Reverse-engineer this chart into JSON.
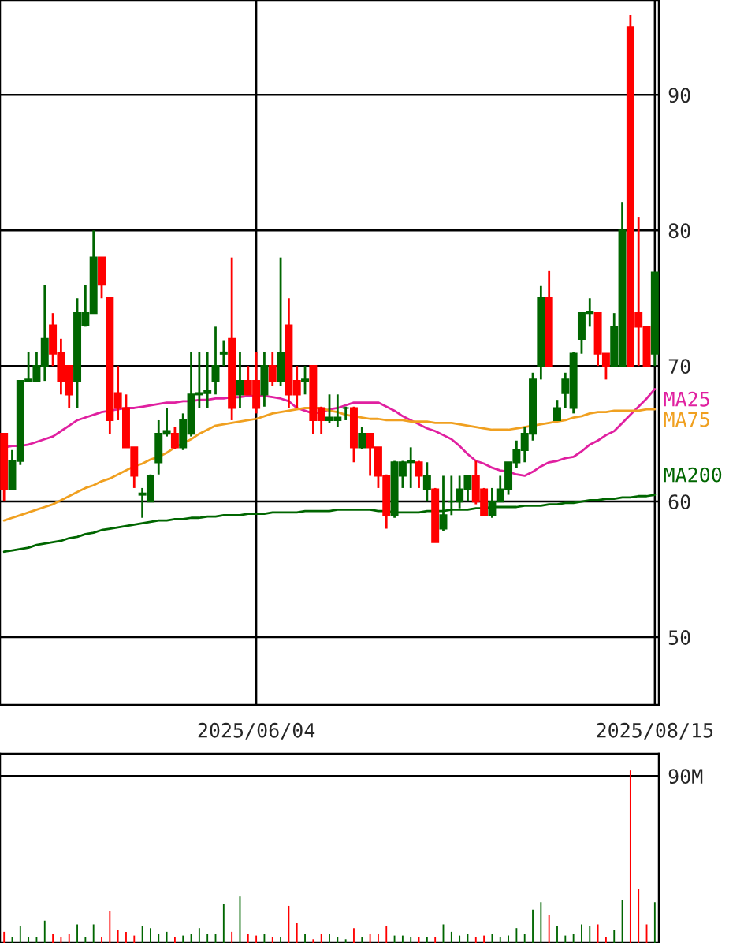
{
  "chart_data": [
    {
      "type": "candlestick",
      "categories": [
        null,
        null,
        null,
        null,
        null,
        null,
        null,
        null,
        null,
        null,
        null,
        null,
        null,
        null,
        null,
        null,
        null,
        null,
        null,
        null,
        null,
        null,
        null,
        null,
        null,
        null,
        null,
        null,
        null,
        null,
        null,
        "2025/06/04",
        null,
        null,
        null,
        null,
        null,
        null,
        null,
        null,
        null,
        null,
        null,
        null,
        null,
        null,
        null,
        null,
        null,
        null,
        null,
        null,
        null,
        null,
        null,
        null,
        null,
        null,
        null,
        null,
        null,
        null,
        null,
        null,
        null,
        null,
        null,
        null,
        null,
        null,
        null,
        null,
        null,
        null,
        null,
        null,
        null,
        null,
        null,
        null,
        "2025/08/15"
      ],
      "ohlc": [
        [
          65,
          65,
          60,
          60.9
        ],
        [
          60.9,
          63.8,
          60.9,
          63
        ],
        [
          63,
          68.9,
          62.7,
          68.9
        ],
        [
          68.9,
          71,
          68.8,
          69
        ],
        [
          68.9,
          71,
          68.9,
          70
        ],
        [
          70,
          76,
          68.9,
          72
        ],
        [
          73,
          73.9,
          70,
          70.9
        ],
        [
          71,
          72,
          67.9,
          68.9
        ],
        [
          70,
          70,
          66.9,
          67.9
        ],
        [
          68.9,
          75,
          66.9,
          73.9
        ],
        [
          73,
          76,
          72.9,
          73.9
        ],
        [
          73.9,
          80,
          73.9,
          78
        ],
        [
          78,
          78,
          75,
          76
        ],
        [
          75,
          75,
          65,
          66
        ],
        [
          68,
          70,
          66,
          66.9
        ],
        [
          66.9,
          67.9,
          64,
          64
        ],
        [
          64,
          64,
          61,
          61.9
        ],
        [
          60.5,
          61,
          58.8,
          60.6
        ],
        [
          60,
          62,
          60,
          61.9
        ],
        [
          62.9,
          66,
          62,
          65
        ],
        [
          65,
          66.9,
          64.8,
          65.2
        ],
        [
          65,
          65.5,
          63.9,
          64
        ],
        [
          64,
          66.5,
          63.8,
          66
        ],
        [
          65,
          71,
          64.8,
          67.9
        ],
        [
          67.9,
          71,
          66.9,
          68
        ],
        [
          68,
          71,
          66.9,
          68.2
        ],
        [
          68.9,
          72.9,
          67.9,
          70
        ],
        [
          70.9,
          71.9,
          70,
          71
        ],
        [
          72,
          78,
          66,
          66.9
        ],
        [
          67.9,
          71,
          66.9,
          68.9
        ],
        [
          68.9,
          70,
          67.9,
          67.9
        ],
        [
          68.9,
          71,
          66.5,
          66.9
        ],
        [
          67.9,
          71,
          67,
          70
        ],
        [
          70,
          71,
          68.5,
          68.9
        ],
        [
          68.9,
          78,
          68.5,
          71
        ],
        [
          73,
          75,
          66.9,
          67.9
        ],
        [
          68.9,
          70,
          66.9,
          67.9
        ],
        [
          68.9,
          70,
          67.9,
          69
        ],
        [
          70,
          70,
          65,
          66
        ],
        [
          66.9,
          67,
          65,
          66
        ],
        [
          66,
          67.9,
          65.8,
          66.2
        ],
        [
          66,
          67.9,
          65.5,
          66.2
        ],
        [
          66.9,
          67,
          66,
          66.9
        ],
        [
          66.9,
          67,
          62.9,
          64
        ],
        [
          64,
          65.5,
          63.9,
          65
        ],
        [
          65,
          65,
          61.9,
          64
        ],
        [
          64,
          64,
          61,
          61.9
        ],
        [
          61.9,
          62,
          58,
          59
        ],
        [
          59,
          63,
          58.8,
          62.9
        ],
        [
          61.9,
          63,
          61,
          62.9
        ],
        [
          62.9,
          64,
          61,
          63
        ],
        [
          62.9,
          63,
          61,
          61.9
        ],
        [
          60.9,
          62.9,
          60,
          61.9
        ],
        [
          60.9,
          61,
          57,
          57
        ],
        [
          58,
          61.9,
          57.8,
          59
        ],
        [
          60,
          61.9,
          59,
          60
        ],
        [
          60,
          61.9,
          59.5,
          60.9
        ],
        [
          60.9,
          61.9,
          60,
          61.9
        ],
        [
          61.9,
          63,
          59.8,
          60
        ],
        [
          60.9,
          61,
          59,
          59
        ],
        [
          59,
          61,
          58.8,
          60
        ],
        [
          60,
          61.9,
          60,
          60.9
        ],
        [
          60.9,
          62.9,
          60.5,
          62.9
        ],
        [
          62.9,
          64.5,
          62.5,
          63.8
        ],
        [
          63.8,
          65.5,
          62.9,
          65
        ],
        [
          65,
          69.5,
          64.5,
          69
        ],
        [
          70,
          75.9,
          69,
          75
        ],
        [
          75,
          77,
          70,
          70
        ],
        [
          66,
          67.5,
          66,
          66.9
        ],
        [
          68,
          69.5,
          66.9,
          69
        ],
        [
          66.9,
          71,
          66.5,
          70.9
        ],
        [
          72,
          73.9,
          70.9,
          73.9
        ],
        [
          73.9,
          75,
          72.9,
          74
        ],
        [
          73.9,
          73.9,
          70,
          70.9
        ],
        [
          70.9,
          70.9,
          69,
          70
        ],
        [
          70,
          73.9,
          70,
          72.9
        ],
        [
          70,
          82.1,
          70,
          80
        ],
        [
          95,
          95.9,
          70,
          70
        ],
        [
          73.9,
          81,
          70,
          72.9
        ],
        [
          72.9,
          72.9,
          70,
          70
        ],
        [
          70.9,
          76.9,
          70,
          76.9
        ]
      ],
      "colors": [
        "#ff0000",
        "#006600",
        "#006600",
        "#006600",
        "#006600",
        "#006600",
        "#ff0000",
        "#ff0000",
        "#ff0000",
        "#006600",
        "#006600",
        "#006600",
        "#ff0000",
        "#ff0000",
        "#ff0000",
        "#ff0000",
        "#ff0000",
        "#006600",
        "#006600",
        "#006600",
        "#006600",
        "#ff0000",
        "#006600",
        "#006600",
        "#006600",
        "#006600",
        "#006600",
        "#006600",
        "#ff0000",
        "#006600",
        "#ff0000",
        "#ff0000",
        "#006600",
        "#ff0000",
        "#006600",
        "#ff0000",
        "#ff0000",
        "#006600",
        "#ff0000",
        "#ff0000",
        "#006600",
        "#006600",
        "#006600",
        "#ff0000",
        "#006600",
        "#ff0000",
        "#ff0000",
        "#ff0000",
        "#006600",
        "#006600",
        "#006600",
        "#ff0000",
        "#006600",
        "#ff0000",
        "#006600",
        "#006600",
        "#006600",
        "#006600",
        "#ff0000",
        "#ff0000",
        "#006600",
        "#006600",
        "#006600",
        "#006600",
        "#006600",
        "#006600",
        "#006600",
        "#ff0000",
        "#006600",
        "#006600",
        "#006600",
        "#006600",
        "#006600",
        "#ff0000",
        "#ff0000",
        "#006600",
        "#006600",
        "#ff0000",
        "#ff0000",
        "#ff0000",
        "#006600"
      ],
      "series": [
        {
          "type": "line",
          "name": "MA25",
          "color": "#e020a0",
          "values": [
            64,
            64.1,
            64.1,
            64.2,
            64.4,
            64.6,
            64.8,
            65.2,
            65.6,
            66,
            66.2,
            66.4,
            66.6,
            66.7,
            66.8,
            66.9,
            66.9,
            67,
            67.1,
            67.2,
            67.3,
            67.3,
            67.4,
            67.4,
            67.5,
            67.5,
            67.6,
            67.6,
            67.7,
            67.7,
            67.8,
            67.8,
            67.8,
            67.7,
            67.6,
            67.4,
            66.9,
            66.7,
            66.5,
            66.6,
            66.8,
            66.9,
            67.1,
            67.3,
            67.3,
            67.3,
            67.3,
            67,
            66.7,
            66.3,
            66,
            65.7,
            65.4,
            65.2,
            64.9,
            64.6,
            64.1,
            63.5,
            63,
            62.8,
            62.5,
            62.3,
            62.2,
            62,
            61.9,
            62.2,
            62.6,
            62.9,
            63,
            63.2,
            63.3,
            63.7,
            64.2,
            64.5,
            64.9,
            65.2,
            65.8,
            66.4,
            67,
            67.6,
            68.3
          ]
        },
        {
          "type": "line",
          "name": "MA75",
          "color": "#f0a020",
          "values": [
            58.6,
            58.8,
            59,
            59.2,
            59.4,
            59.6,
            59.8,
            60.1,
            60.4,
            60.7,
            61,
            61.2,
            61.5,
            61.7,
            62,
            62.3,
            62.6,
            62.8,
            63.1,
            63.3,
            63.6,
            64,
            64.3,
            64.6,
            65,
            65.3,
            65.6,
            65.7,
            65.8,
            65.9,
            66,
            66.1,
            66.3,
            66.5,
            66.6,
            66.7,
            66.8,
            66.9,
            66.9,
            66.9,
            66.7,
            66.6,
            66.4,
            66.3,
            66.2,
            66.1,
            66.1,
            66,
            66,
            66,
            65.9,
            65.9,
            65.9,
            65.8,
            65.8,
            65.8,
            65.7,
            65.6,
            65.5,
            65.4,
            65.3,
            65.3,
            65.3,
            65.4,
            65.5,
            65.6,
            65.7,
            65.8,
            65.9,
            66,
            66.2,
            66.3,
            66.5,
            66.6,
            66.6,
            66.7,
            66.7,
            66.7,
            66.7,
            66.8,
            66.8
          ]
        },
        {
          "type": "line",
          "name": "MA200",
          "color": "#006600",
          "values": [
            56.3,
            56.4,
            56.5,
            56.6,
            56.8,
            56.9,
            57,
            57.1,
            57.3,
            57.4,
            57.6,
            57.7,
            57.9,
            58,
            58.1,
            58.2,
            58.3,
            58.4,
            58.5,
            58.6,
            58.6,
            58.7,
            58.7,
            58.8,
            58.8,
            58.9,
            58.9,
            59,
            59,
            59,
            59.1,
            59.1,
            59.1,
            59.2,
            59.2,
            59.2,
            59.2,
            59.3,
            59.3,
            59.3,
            59.3,
            59.4,
            59.4,
            59.4,
            59.4,
            59.4,
            59.3,
            59.3,
            59.2,
            59.2,
            59.2,
            59.2,
            59.3,
            59.3,
            59.3,
            59.4,
            59.4,
            59.4,
            59.5,
            59.5,
            59.6,
            59.6,
            59.6,
            59.6,
            59.7,
            59.7,
            59.7,
            59.8,
            59.8,
            59.9,
            59.9,
            60,
            60.1,
            60.1,
            60.2,
            60.2,
            60.3,
            60.3,
            60.4,
            60.4,
            60.5
          ]
        }
      ],
      "ylim": [
        45,
        97
      ],
      "yticks": [
        50,
        60,
        70,
        80,
        90
      ],
      "grid": true
    },
    {
      "type": "bar",
      "categories": [
        null,
        null,
        null,
        null,
        null,
        null,
        null,
        null,
        null,
        null,
        null,
        null,
        null,
        null,
        null,
        null,
        null,
        null,
        null,
        null,
        null,
        null,
        null,
        null,
        null,
        null,
        null,
        null,
        null,
        null,
        null,
        null,
        null,
        null,
        null,
        null,
        null,
        null,
        null,
        null,
        null,
        null,
        null,
        null,
        null,
        null,
        null,
        null,
        null,
        null,
        null,
        null,
        null,
        null,
        null,
        null,
        null,
        null,
        null,
        null,
        null,
        null,
        null,
        null,
        null,
        null,
        null,
        null,
        null,
        null,
        null,
        null,
        null,
        null,
        null,
        null,
        null,
        null,
        null,
        null,
        null
      ],
      "values": [
        6,
        3,
        9,
        3,
        3,
        12,
        5,
        3,
        5,
        10,
        3,
        10,
        3,
        17,
        7,
        6,
        4,
        9,
        8,
        5,
        6,
        3,
        4,
        5,
        8,
        5,
        5,
        21,
        6,
        25,
        5,
        4,
        5,
        3,
        3,
        20,
        11,
        5,
        2,
        5,
        5,
        3,
        2,
        8,
        3,
        5,
        5,
        9,
        4,
        4,
        3,
        3,
        3,
        3,
        10,
        6,
        4,
        5,
        3,
        4,
        5,
        3,
        4,
        8,
        5,
        18,
        22,
        15,
        9,
        4,
        5,
        10,
        9,
        10,
        3,
        7,
        23,
        93,
        29,
        10,
        22
      ],
      "colors": [
        "#ff0000",
        "#006600",
        "#006600",
        "#006600",
        "#006600",
        "#006600",
        "#ff0000",
        "#ff0000",
        "#ff0000",
        "#006600",
        "#006600",
        "#006600",
        "#ff0000",
        "#ff0000",
        "#ff0000",
        "#ff0000",
        "#ff0000",
        "#006600",
        "#006600",
        "#006600",
        "#006600",
        "#ff0000",
        "#006600",
        "#006600",
        "#006600",
        "#006600",
        "#006600",
        "#006600",
        "#ff0000",
        "#006600",
        "#ff0000",
        "#ff0000",
        "#006600",
        "#ff0000",
        "#006600",
        "#ff0000",
        "#ff0000",
        "#006600",
        "#ff0000",
        "#ff0000",
        "#006600",
        "#006600",
        "#006600",
        "#ff0000",
        "#006600",
        "#ff0000",
        "#ff0000",
        "#ff0000",
        "#006600",
        "#006600",
        "#006600",
        "#ff0000",
        "#006600",
        "#ff0000",
        "#006600",
        "#006600",
        "#006600",
        "#006600",
        "#ff0000",
        "#ff0000",
        "#006600",
        "#006600",
        "#006600",
        "#006600",
        "#006600",
        "#006600",
        "#006600",
        "#ff0000",
        "#006600",
        "#006600",
        "#006600",
        "#006600",
        "#006600",
        "#ff0000",
        "#ff0000",
        "#006600",
        "#006600",
        "#ff0000",
        "#ff0000",
        "#ff0000",
        "#006600"
      ],
      "ylim": [
        0,
        102
      ],
      "yticks": [
        {
          "value": 90,
          "label": "90M"
        }
      ],
      "grid": "y",
      "tick_labels": "y"
    }
  ]
}
